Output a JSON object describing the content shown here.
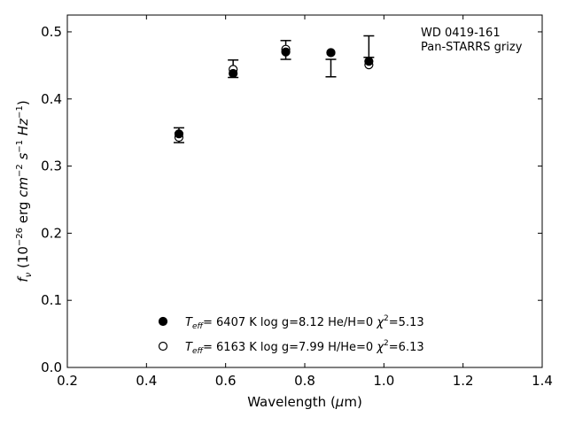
{
  "chart_data": {
    "type": "scatter",
    "xlabel": "Wavelength (μm)",
    "ylabel": "f_ν (10^-26 erg cm^-2 s^-1 Hz^-1)",
    "xlim": [
      0.2,
      1.4
    ],
    "ylim": [
      0.0,
      0.525
    ],
    "x_ticks": [
      "0.2",
      "0.4",
      "0.6",
      "0.8",
      "1.0",
      "1.2",
      "1.4"
    ],
    "y_ticks": [
      "0.0",
      "0.1",
      "0.2",
      "0.3",
      "0.4",
      "0.5"
    ],
    "grid": false,
    "annotation": [
      "WD 0419-161",
      "Pan-STARRS grizy"
    ],
    "observed": {
      "x": [
        0.482,
        0.619,
        0.752,
        0.866,
        0.962
      ],
      "y": [
        0.346,
        0.445,
        0.473,
        0.446,
        0.478
      ],
      "yerr": [
        0.011,
        0.013,
        0.014,
        0.013,
        0.016
      ]
    },
    "series": [
      {
        "marker": "filled-circle",
        "x": [
          0.482,
          0.619,
          0.752,
          0.866,
          0.962
        ],
        "y": [
          0.348,
          0.438,
          0.47,
          0.469,
          0.456
        ]
      },
      {
        "marker": "open-circle",
        "x": [
          0.482,
          0.619,
          0.752,
          0.866,
          0.962
        ],
        "y": [
          0.343,
          0.444,
          0.474,
          0.469,
          0.451
        ]
      }
    ],
    "legend": [
      {
        "marker": "filled-circle",
        "teff_value": "6407 K",
        "logg": "log g=8.12",
        "comp": "He/H=0",
        "chi2_value": "=5.13"
      },
      {
        "marker": "open-circle",
        "teff_value": "6163 K",
        "logg": "log g=7.99",
        "comp": "H/He=0",
        "chi2_value": "=6.13"
      }
    ],
    "legend_placement": "lower-center"
  }
}
